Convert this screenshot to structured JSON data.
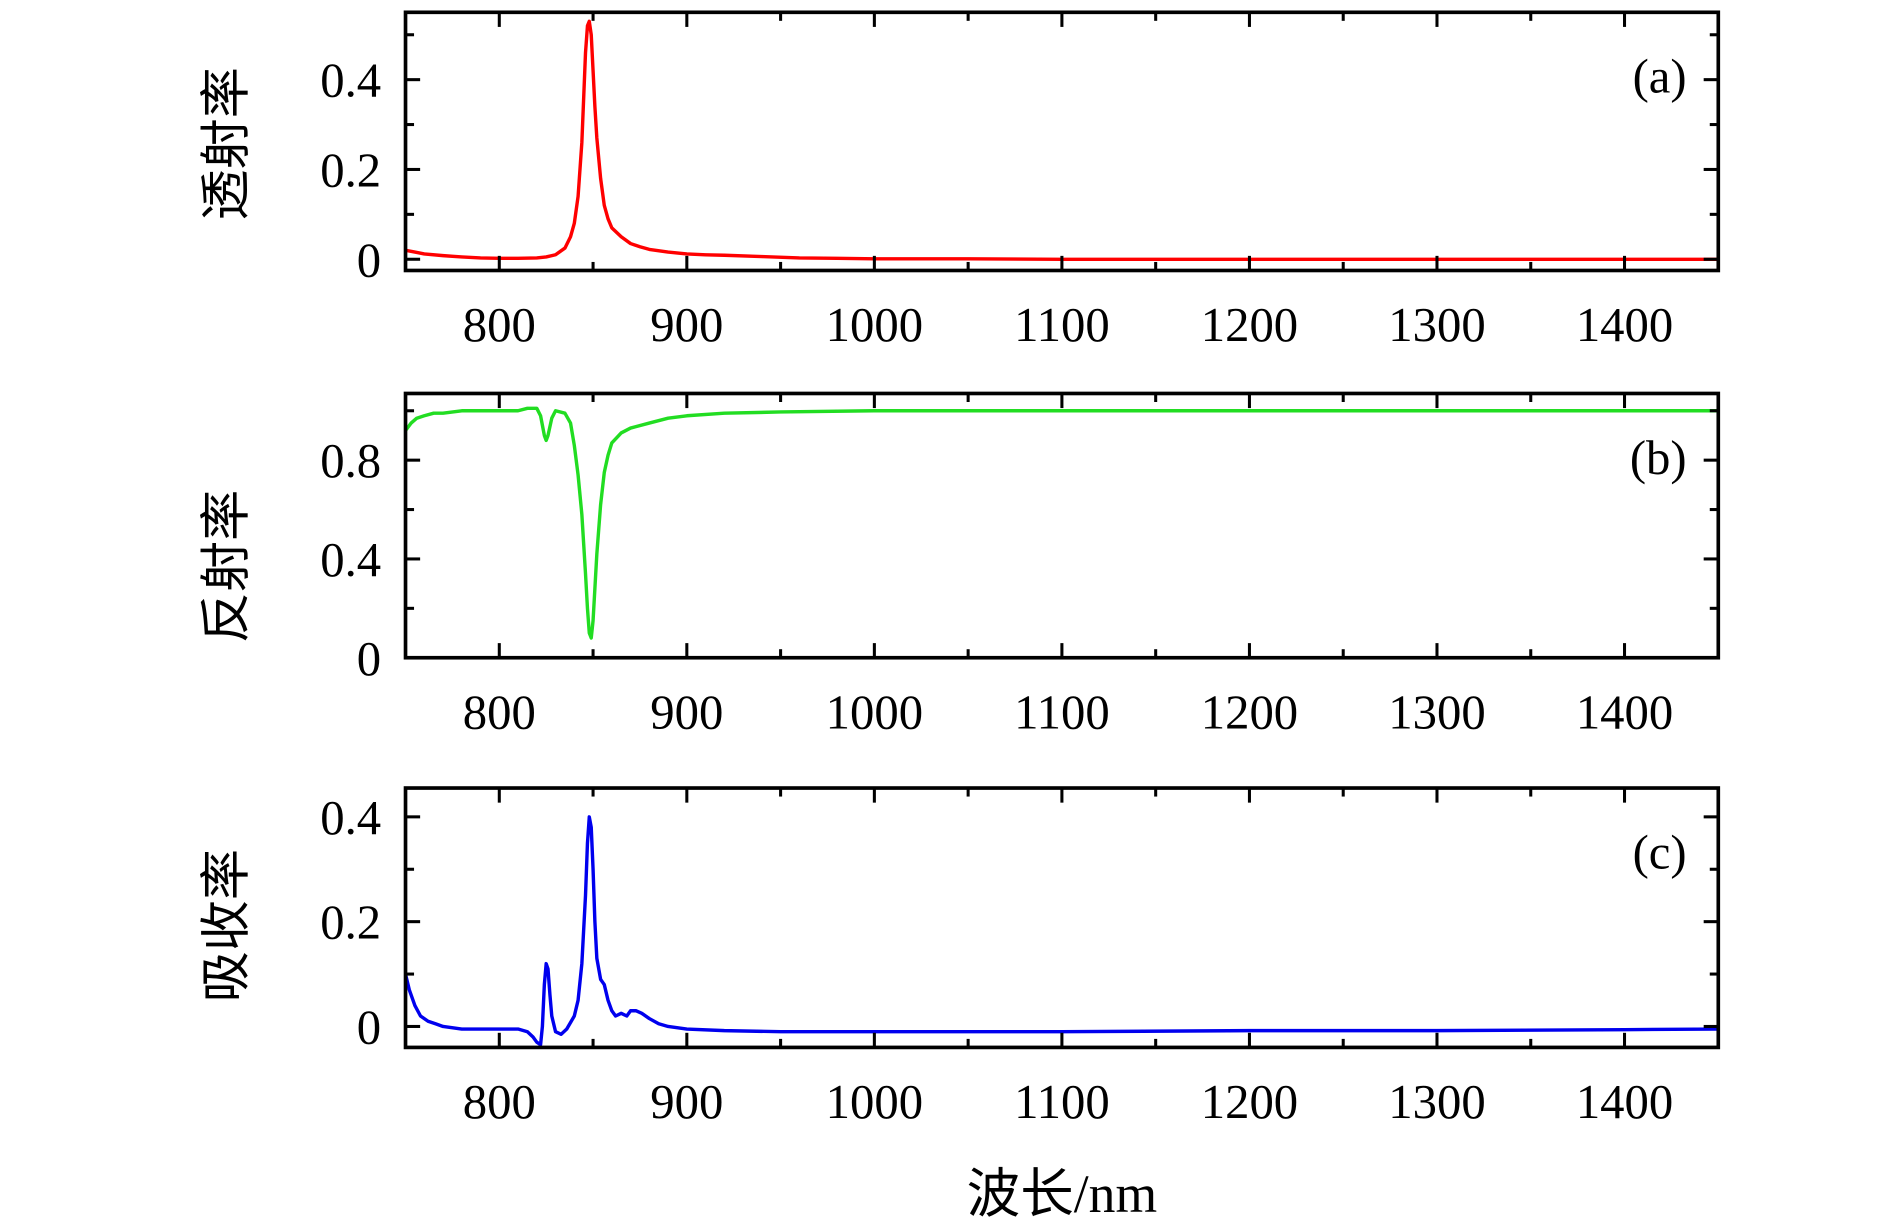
{
  "figure": {
    "xlabel": "波长/nm"
  },
  "chart_data": [
    {
      "type": "line",
      "panel_label": "(a)",
      "ylabel": "透射率",
      "xlim": [
        750,
        1450
      ],
      "ylim": [
        -0.025,
        0.55
      ],
      "grid": false,
      "xticks": [
        800,
        900,
        1000,
        1100,
        1200,
        1300,
        1400
      ],
      "xtick_labels": [
        "800",
        "900",
        "1000",
        "1100",
        "1200",
        "1300",
        "1400"
      ],
      "yticks": [
        0,
        0.2,
        0.4
      ],
      "ytick_labels": [
        "0",
        "0.2",
        "0.4"
      ],
      "x": [
        750,
        755,
        760,
        770,
        780,
        790,
        800,
        810,
        820,
        825,
        830,
        835,
        838,
        840,
        842,
        844,
        845,
        846,
        847,
        848,
        849,
        850,
        851,
        852,
        854,
        856,
        858,
        860,
        865,
        870,
        875,
        880,
        890,
        900,
        910,
        920,
        940,
        960,
        980,
        1000,
        1050,
        1100,
        1200,
        1300,
        1400,
        1450
      ],
      "series": [
        {
          "color": "#ff0000",
          "values": [
            0.02,
            0.016,
            0.012,
            0.008,
            0.005,
            0.003,
            0.002,
            0.002,
            0.003,
            0.005,
            0.01,
            0.025,
            0.05,
            0.08,
            0.14,
            0.26,
            0.36,
            0.46,
            0.52,
            0.53,
            0.5,
            0.42,
            0.34,
            0.27,
            0.18,
            0.12,
            0.09,
            0.07,
            0.05,
            0.035,
            0.028,
            0.022,
            0.016,
            0.012,
            0.01,
            0.009,
            0.006,
            0.003,
            0.002,
            0.001,
            0.001,
            0,
            0,
            0,
            0,
            0
          ]
        }
      ]
    },
    {
      "type": "line",
      "panel_label": "(b)",
      "ylabel": "反射率",
      "xlim": [
        750,
        1450
      ],
      "ylim": [
        0,
        1.07
      ],
      "grid": false,
      "xticks": [
        800,
        900,
        1000,
        1100,
        1200,
        1300,
        1400
      ],
      "xtick_labels": [
        "800",
        "900",
        "1000",
        "1100",
        "1200",
        "1300",
        "1400"
      ],
      "yticks": [
        0,
        0.4,
        0.8
      ],
      "ytick_labels": [
        "0",
        "0.4",
        "0.8"
      ],
      "x": [
        750,
        753,
        756,
        760,
        765,
        770,
        780,
        790,
        800,
        810,
        815,
        820,
        822,
        824,
        825,
        826,
        828,
        830,
        835,
        838,
        840,
        842,
        844,
        845,
        846,
        847,
        848,
        849,
        850,
        851,
        852,
        854,
        856,
        858,
        860,
        865,
        870,
        880,
        890,
        900,
        920,
        950,
        1000,
        1100,
        1200,
        1300,
        1400,
        1450
      ],
      "series": [
        {
          "color": "#22dd22",
          "values": [
            0.92,
            0.95,
            0.97,
            0.98,
            0.99,
            0.99,
            1.0,
            1.0,
            1.0,
            1.0,
            1.01,
            1.01,
            0.98,
            0.9,
            0.88,
            0.9,
            0.97,
            1.0,
            0.99,
            0.95,
            0.86,
            0.74,
            0.58,
            0.46,
            0.34,
            0.2,
            0.1,
            0.08,
            0.15,
            0.28,
            0.42,
            0.62,
            0.75,
            0.82,
            0.87,
            0.91,
            0.93,
            0.95,
            0.97,
            0.98,
            0.99,
            0.995,
            1.0,
            1.0,
            1.0,
            1.0,
            1.0,
            1.0
          ]
        }
      ]
    },
    {
      "type": "line",
      "panel_label": "(c)",
      "ylabel": "吸收率",
      "xlim": [
        750,
        1450
      ],
      "ylim": [
        -0.04,
        0.455
      ],
      "grid": false,
      "xticks": [
        800,
        900,
        1000,
        1100,
        1200,
        1300,
        1400
      ],
      "xtick_labels": [
        "800",
        "900",
        "1000",
        "1100",
        "1200",
        "1300",
        "1400"
      ],
      "yticks": [
        0,
        0.2,
        0.4
      ],
      "ytick_labels": [
        "0",
        "0.2",
        "0.4"
      ],
      "x": [
        750,
        752,
        755,
        758,
        762,
        766,
        770,
        780,
        790,
        800,
        810,
        815,
        818,
        820,
        822,
        823,
        824,
        825,
        826,
        827,
        828,
        830,
        833,
        836,
        840,
        842,
        844,
        846,
        847,
        848,
        849,
        850,
        851,
        852,
        854,
        856,
        858,
        860,
        862,
        865,
        868,
        870,
        873,
        876,
        880,
        885,
        890,
        900,
        920,
        950,
        1000,
        1100,
        1200,
        1300,
        1400,
        1450
      ],
      "series": [
        {
          "color": "#0000ee",
          "values": [
            0.1,
            0.07,
            0.04,
            0.02,
            0.01,
            0.005,
            0,
            -0.005,
            -0.005,
            -0.005,
            -0.005,
            -0.01,
            -0.02,
            -0.03,
            -0.035,
            0.0,
            0.08,
            0.12,
            0.11,
            0.06,
            0.02,
            -0.01,
            -0.015,
            -0.005,
            0.02,
            0.05,
            0.12,
            0.25,
            0.35,
            0.4,
            0.38,
            0.3,
            0.2,
            0.13,
            0.09,
            0.08,
            0.05,
            0.03,
            0.02,
            0.025,
            0.02,
            0.03,
            0.03,
            0.025,
            0.015,
            0.005,
            0,
            -0.005,
            -0.008,
            -0.01,
            -0.01,
            -0.01,
            -0.008,
            -0.008,
            -0.006,
            -0.005
          ]
        }
      ]
    }
  ]
}
